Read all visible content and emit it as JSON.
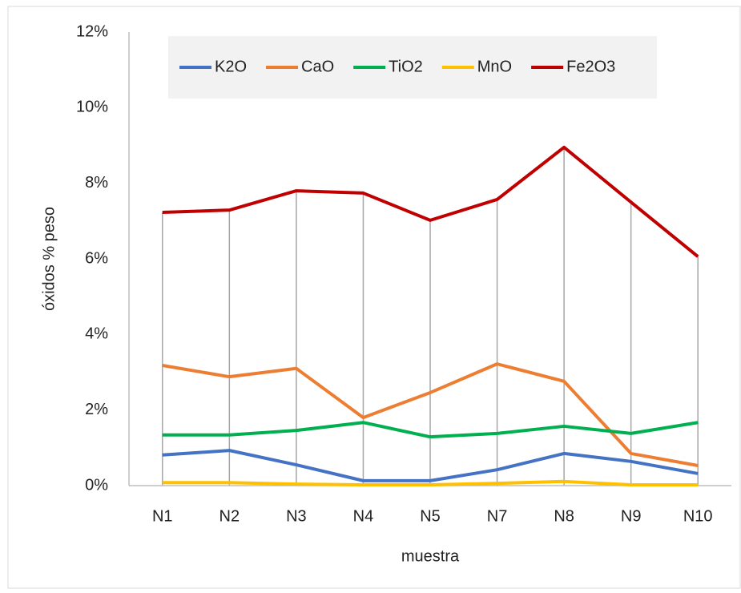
{
  "chart_data": {
    "type": "line",
    "categories": [
      "N1",
      "N2",
      "N3",
      "N4",
      "N5",
      "N7",
      "N8",
      "N9",
      "N10"
    ],
    "series": [
      {
        "name": "K2O",
        "color": "#4472c4",
        "values": [
          0.81,
          0.93,
          0.55,
          0.13,
          0.13,
          0.42,
          0.85,
          0.64,
          0.32
        ]
      },
      {
        "name": "CaO",
        "color": "#ed7d31",
        "values": [
          3.18,
          2.88,
          3.1,
          1.8,
          2.46,
          3.22,
          2.76,
          0.85,
          0.53
        ]
      },
      {
        "name": "TiO2",
        "color": "#00b050",
        "values": [
          1.34,
          1.34,
          1.46,
          1.67,
          1.29,
          1.38,
          1.57,
          1.38,
          1.67
        ]
      },
      {
        "name": "MnO",
        "color": "#ffc000",
        "values": [
          0.08,
          0.08,
          0.04,
          0.02,
          0.02,
          0.06,
          0.11,
          0.02,
          0.02
        ]
      },
      {
        "name": "Fe2O3",
        "color": "#c00000",
        "values": [
          7.23,
          7.29,
          7.8,
          7.74,
          7.02,
          7.57,
          8.95,
          7.5,
          6.06
        ]
      }
    ],
    "xlabel": "muestra",
    "ylabel": "óxidos % peso",
    "ylim": [
      0,
      12
    ],
    "yticks": [
      {
        "value": 0,
        "label": "0%"
      },
      {
        "value": 2,
        "label": "2%"
      },
      {
        "value": 4,
        "label": "4%"
      },
      {
        "value": 6,
        "label": "6%"
      },
      {
        "value": 8,
        "label": "8%"
      },
      {
        "value": 10,
        "label": "10%"
      },
      {
        "value": 12,
        "label": "12%"
      }
    ],
    "legend": "top",
    "drop_lines": true
  }
}
